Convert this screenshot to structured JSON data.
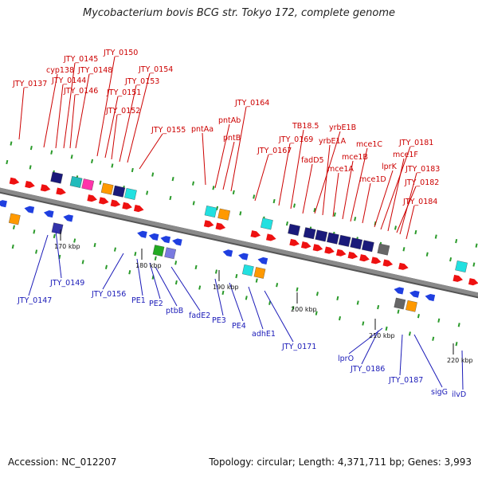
{
  "title": "Mycobacterium bovis BCG str. Tokyo 172, complete genome",
  "footer": {
    "accession": "Accession: NC_012207",
    "topology": "Topology: circular; Length: 4,371,711 bp; Genes: 3,993"
  },
  "colors": {
    "forward_gene": "#ee1111",
    "reverse_gene": "#1f3fe0",
    "label_top": "#cc0000",
    "label_bottom": "#1a1ab8",
    "backbone": "#8a8a8a"
  },
  "top_labels": [
    "JTY_0137",
    "cyp138",
    "JTY_0144",
    "JTY_0145",
    "JTY_0146",
    "JTY_0148",
    "JTY_0150",
    "JTY_0151",
    "JTY_0152",
    "JTY_0153",
    "JTY_0154",
    "JTY_0155",
    "pntAa",
    "pntAb",
    "pntB",
    "JTY_0164",
    "JTY_0167",
    "JTY_0169",
    "TB18.5",
    "yrbE1B",
    "yrbE1A",
    "fadD5",
    "mce1A",
    "mce1B",
    "mce1C",
    "mce1D",
    "lprK",
    "JTY_0181",
    "mce1F",
    "JTY_0182",
    "JTY_0183",
    "JTY_0184"
  ],
  "bottom_labels": [
    "JTY_0147",
    "JTY_0149",
    "JTY_0156",
    "PE1",
    "PE2",
    "ptbB",
    "fadE2",
    "PE3",
    "PE4",
    "adhE1",
    "JTY_0171",
    "lprO",
    "JTY_0186",
    "JTY_0187",
    "sigG",
    "ilvD"
  ],
  "ticks": [
    "170 kbp",
    "180 kbp",
    "190 kbp",
    "200 kbp",
    "210 kbp",
    "220 kbp"
  ]
}
